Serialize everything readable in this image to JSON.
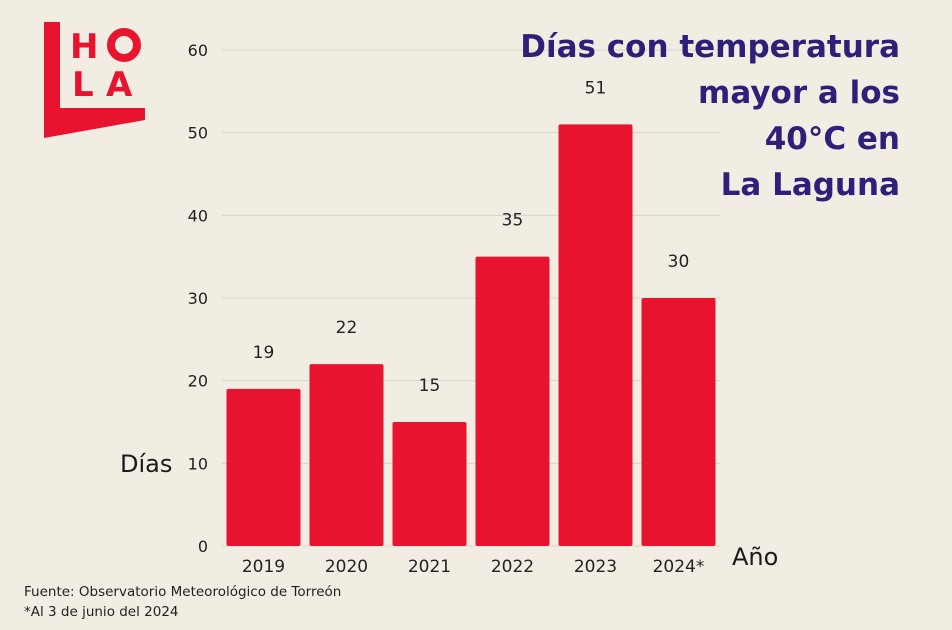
{
  "logo": {
    "text": "HOLA",
    "color": "#e8142f"
  },
  "chart_data": {
    "type": "bar",
    "title_lines": [
      "Días con temperatura",
      "mayor a los",
      "40°C en",
      "La Laguna"
    ],
    "categories": [
      "2019",
      "2020",
      "2021",
      "2022",
      "2023",
      "2024*"
    ],
    "values": [
      19,
      22,
      15,
      35,
      51,
      30
    ],
    "data_labels": [
      "19",
      "22",
      "15",
      "35",
      "51",
      "30"
    ],
    "ylabel": "Días",
    "xlabel": "Año",
    "ylim": [
      0,
      60
    ],
    "yticks": [
      "0",
      "10",
      "20",
      "30",
      "40",
      "50",
      "60"
    ],
    "grid": true,
    "bar_color": "#e8142f",
    "title_color": "#2e1f78"
  },
  "footnotes": {
    "source": "Fuente: Observatorio Meteorológico de Torreón",
    "note": "*Al 3 de junio del 2024"
  }
}
